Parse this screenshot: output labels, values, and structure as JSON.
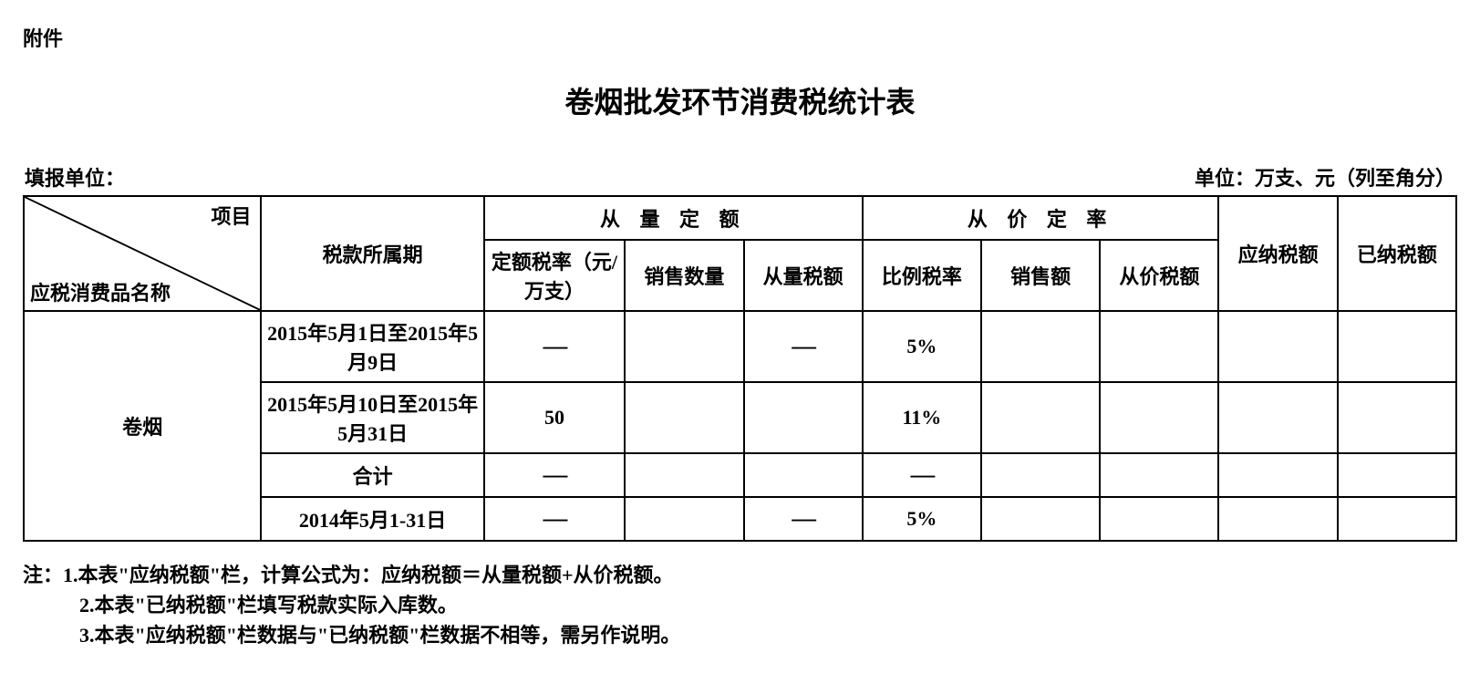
{
  "attachment_label": "附件",
  "title": "卷烟批发环节消费税统计表",
  "meta": {
    "filing_unit_label": "填报单位：",
    "unit_label": "单位：万支、元（列至角分）"
  },
  "headers": {
    "diag_top": "项目",
    "diag_bottom": "应税消费品名称",
    "tax_period": "税款所属期",
    "quantity_group": "从 量 定 额",
    "price_group": "从 价 定 率",
    "fixed_rate": "定额税率（元/万支）",
    "sales_qty": "销售数量",
    "qty_tax": "从量税额",
    "pct_rate": "比例税率",
    "sales_amt": "销售额",
    "price_tax": "从价税额",
    "payable": "应纳税额",
    "paid": "已纳税额"
  },
  "product_name": "卷烟",
  "rows": [
    {
      "period": "2015年5月1日至2015年5月9日",
      "fixed_rate": "-----",
      "sales_qty": "",
      "qty_tax": "-----",
      "pct_rate": "5%",
      "sales_amt": "",
      "price_tax": "",
      "payable": "",
      "paid": ""
    },
    {
      "period": "2015年5月10日至2015年5月31日",
      "fixed_rate": "50",
      "sales_qty": "",
      "qty_tax": "",
      "pct_rate": "11%",
      "sales_amt": "",
      "price_tax": "",
      "payable": "",
      "paid": ""
    },
    {
      "period": "合计",
      "fixed_rate": "-----",
      "sales_qty": "",
      "qty_tax": "",
      "pct_rate": "-----",
      "sales_amt": "",
      "price_tax": "",
      "payable": "",
      "paid": ""
    },
    {
      "period": "2014年5月1-31日",
      "fixed_rate": "-----",
      "sales_qty": "",
      "qty_tax": "-----",
      "pct_rate": "5%",
      "sales_amt": "",
      "price_tax": "",
      "payable": "",
      "paid": ""
    }
  ],
  "notes": {
    "label": "注：",
    "items": [
      "1.本表\"应纳税额\"栏，计算公式为：应纳税额＝从量税额+从价税额。",
      "2.本表\"已纳税额\"栏填写税款实际入库数。",
      "3.本表\"应纳税额\"栏数据与\"已纳税额\"栏数据不相等，需另作说明。"
    ]
  },
  "col_widths": {
    "diag": "16%",
    "period": "15%",
    "fixed_rate": "9.5%",
    "sales_qty": "8%",
    "qty_tax": "8%",
    "pct_rate": "8%",
    "sales_amt": "8%",
    "price_tax": "8%",
    "payable": "8%",
    "paid": "8%"
  }
}
